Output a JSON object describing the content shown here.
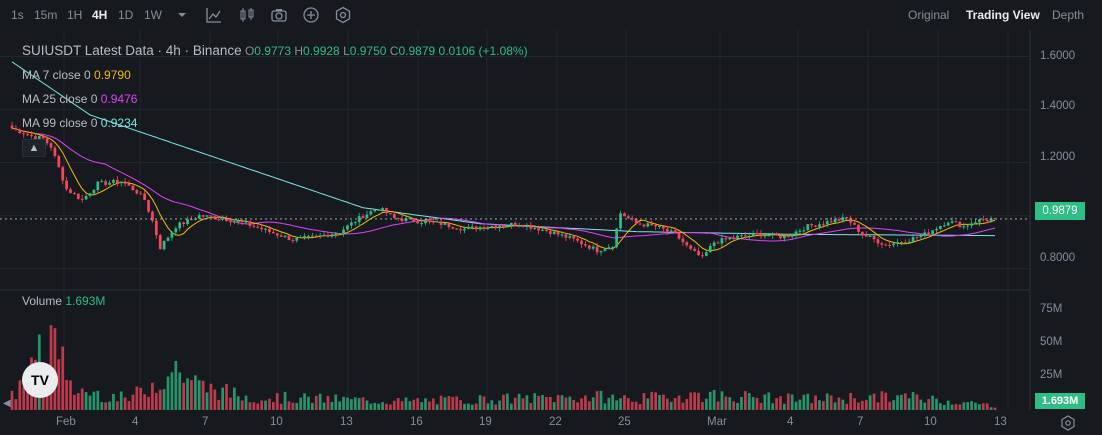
{
  "toolbar": {
    "timeframes": [
      "1s",
      "15m",
      "1H",
      "4H",
      "1D",
      "1W"
    ],
    "active_timeframe": "4H",
    "icons": [
      "chevron-down-icon",
      "indicator-icon",
      "candle-type-icon",
      "camera-icon",
      "plus-circle-icon",
      "settings-hex-icon"
    ],
    "views": [
      "Original",
      "Trading View",
      "Depth"
    ],
    "active_view": "Trading View"
  },
  "legend": {
    "symbol": "SUIUSDT Latest Data · 4h · Binance",
    "ohlc": {
      "O": "0.9773",
      "H": "0.9928",
      "L": "0.9750",
      "C": "0.9879",
      "change": "0.0106 (+1.08%)"
    },
    "ma": [
      {
        "label": "MA 7 close 0",
        "value": "0.9790",
        "color": "#F0B90B"
      },
      {
        "label": "MA 25 close 0",
        "value": "0.9476",
        "color": "#E040FB"
      },
      {
        "label": "MA 99 close 0",
        "value": "0.9234",
        "color": "#7FE3E3"
      }
    ],
    "volume": {
      "label": "Volume",
      "value": "1.693M"
    }
  },
  "colors": {
    "up": "#2EBD85",
    "down": "#F6465D",
    "bg": "#161A1E",
    "grid": "#23272E"
  },
  "price_badge": "0.9879",
  "volume_badge": "1.693M",
  "logo_text": "TV",
  "chart_data": {
    "type": "candlestick",
    "price_axis": {
      "ticks": [
        "1.6000",
        "1.4000",
        "1.2000",
        "0.8000"
      ],
      "ylim": [
        0.72,
        1.7
      ]
    },
    "volume_axis": {
      "ticks": [
        "75M",
        "50M",
        "25M"
      ],
      "ylim": [
        0,
        100
      ]
    },
    "x_ticks": [
      "Feb",
      "4",
      "7",
      "10",
      "13",
      "16",
      "19",
      "22",
      "25",
      "Mar",
      "4",
      "7",
      "10",
      "13"
    ],
    "last_price": 0.9879,
    "anchors": [
      [
        0,
        1.33
      ],
      [
        5,
        1.3
      ],
      [
        8,
        1.29
      ],
      [
        10,
        1.26
      ],
      [
        14,
        1.1
      ],
      [
        18,
        1.06
      ],
      [
        22,
        1.12
      ],
      [
        28,
        1.13
      ],
      [
        32,
        1.09
      ],
      [
        34,
        1.06
      ],
      [
        36,
        0.98
      ],
      [
        38,
        0.88
      ],
      [
        42,
        0.96
      ],
      [
        48,
        1.0
      ],
      [
        54,
        0.99
      ],
      [
        60,
        0.97
      ],
      [
        66,
        0.94
      ],
      [
        72,
        0.91
      ],
      [
        78,
        0.92
      ],
      [
        84,
        0.94
      ],
      [
        90,
        1.0
      ],
      [
        94,
        1.03
      ],
      [
        98,
        0.99
      ],
      [
        104,
        0.98
      ],
      [
        110,
        0.97
      ],
      [
        116,
        0.95
      ],
      [
        122,
        0.96
      ],
      [
        130,
        0.97
      ],
      [
        138,
        0.94
      ],
      [
        144,
        0.91
      ],
      [
        150,
        0.87
      ],
      [
        154,
        0.89
      ],
      [
        156,
        1.01
      ],
      [
        160,
        0.97
      ],
      [
        165,
        0.96
      ],
      [
        170,
        0.93
      ],
      [
        174,
        0.87
      ],
      [
        177,
        0.84
      ],
      [
        180,
        0.9
      ],
      [
        186,
        0.92
      ],
      [
        192,
        0.93
      ],
      [
        198,
        0.92
      ],
      [
        204,
        0.96
      ],
      [
        210,
        0.98
      ],
      [
        214,
        0.99
      ],
      [
        218,
        0.93
      ],
      [
        224,
        0.89
      ],
      [
        230,
        0.91
      ],
      [
        234,
        0.93
      ],
      [
        240,
        0.98
      ],
      [
        244,
        0.96
      ],
      [
        247,
        0.98
      ],
      [
        252,
        0.99
      ]
    ],
    "ma99_anchors": [
      [
        0,
        1.58
      ],
      [
        20,
        1.38
      ],
      [
        60,
        1.18
      ],
      [
        90,
        1.03
      ],
      [
        120,
        0.97
      ],
      [
        160,
        0.94
      ],
      [
        200,
        0.93
      ],
      [
        252,
        0.925
      ]
    ],
    "volume_anchors": [
      [
        0,
        12
      ],
      [
        12,
        72
      ],
      [
        14,
        20
      ],
      [
        30,
        10
      ],
      [
        42,
        38
      ],
      [
        48,
        22
      ],
      [
        60,
        12
      ],
      [
        100,
        8
      ],
      [
        150,
        12
      ],
      [
        160,
        10
      ],
      [
        175,
        14
      ],
      [
        200,
        10
      ],
      [
        230,
        12
      ],
      [
        252,
        4
      ]
    ]
  }
}
